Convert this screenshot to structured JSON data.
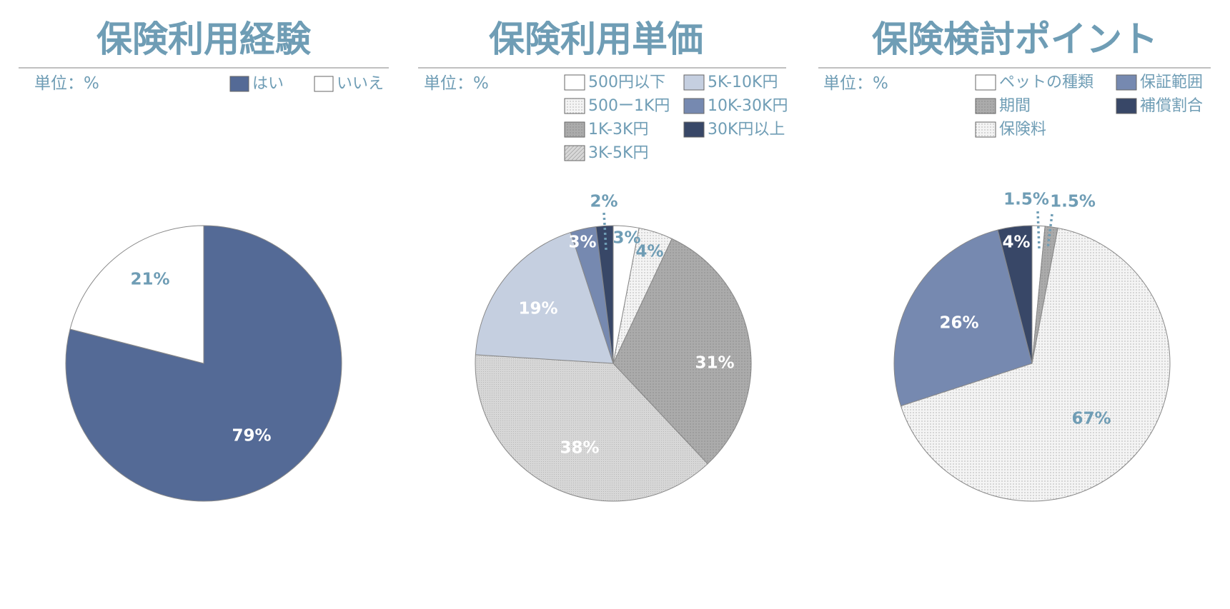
{
  "colors": {
    "accent": "#6f9db5",
    "rule": "#9a9a9a",
    "hai": "#546a96",
    "iie": "#ffffff",
    "light_blue": "#c5cfe0",
    "mid_blue": "#7689b0",
    "dark_navy": "#384767",
    "gray_dark": "#ababab",
    "gray_light": "#d7d7d7",
    "white_dotted": "#f4f4f4",
    "label_light": "#ffffff",
    "label_dark": "#6f9db5"
  },
  "chart_data": [
    {
      "type": "pie",
      "title": "保険利用経験",
      "unit_label": "単位：%",
      "legend_placement": "top-right",
      "slices": [
        {
          "label": "はい",
          "value": 79,
          "display": "79%",
          "color": "hai",
          "pattern": "solid",
          "label_color": "label_light"
        },
        {
          "label": "いいえ",
          "value": 21,
          "display": "21%",
          "color": "iie",
          "pattern": "solid",
          "label_color": "label_dark"
        }
      ]
    },
    {
      "type": "pie",
      "title": "保険利用単価",
      "unit_label": "単位：%",
      "legend_placement": "top-right",
      "slices": [
        {
          "label": "500円以下",
          "value": 3,
          "display": "3%",
          "color": "iie",
          "pattern": "solid",
          "label_color": "label_dark"
        },
        {
          "label": "500ー1K円",
          "value": 4,
          "display": "4%",
          "color": "white_dotted",
          "pattern": "dots",
          "label_color": "label_dark"
        },
        {
          "label": "1K-3K円",
          "value": 31,
          "display": "31%",
          "color": "gray_dark",
          "pattern": "dots",
          "label_color": "label_light"
        },
        {
          "label": "3K-5K円",
          "value": 38,
          "display": "38%",
          "color": "gray_light",
          "pattern": "fine",
          "label_color": "label_light"
        },
        {
          "label": "5K-10K円",
          "value": 19,
          "display": "19%",
          "color": "light_blue",
          "pattern": "solid",
          "label_color": "label_light"
        },
        {
          "label": "10K-30K円",
          "value": 3,
          "display": "3%",
          "color": "mid_blue",
          "pattern": "solid",
          "label_color": "label_light"
        },
        {
          "label": "30K円以上",
          "value": 2,
          "display": "2%",
          "color": "dark_navy",
          "pattern": "solid",
          "label_color": "label_dark"
        }
      ]
    },
    {
      "type": "pie",
      "title": "保険検討ポイント",
      "unit_label": "単位：%",
      "legend_placement": "top-right",
      "slices": [
        {
          "label": "ペットの種類",
          "value": 1.5,
          "display": "1.5%",
          "color": "iie",
          "pattern": "solid",
          "label_color": "label_dark"
        },
        {
          "label": "期間",
          "value": 1.5,
          "display": "1.5%",
          "color": "gray_dark",
          "pattern": "dots",
          "label_color": "label_dark"
        },
        {
          "label": "保険料",
          "value": 67,
          "display": "67%",
          "color": "white_dotted",
          "pattern": "dots",
          "label_color": "label_dark"
        },
        {
          "label": "保証範囲",
          "value": 26,
          "display": "26%",
          "color": "mid_blue",
          "pattern": "solid",
          "label_color": "label_light"
        },
        {
          "label": "補償割合",
          "value": 4,
          "display": "4%",
          "color": "dark_navy",
          "pattern": "solid",
          "label_color": "label_light"
        }
      ]
    }
  ]
}
